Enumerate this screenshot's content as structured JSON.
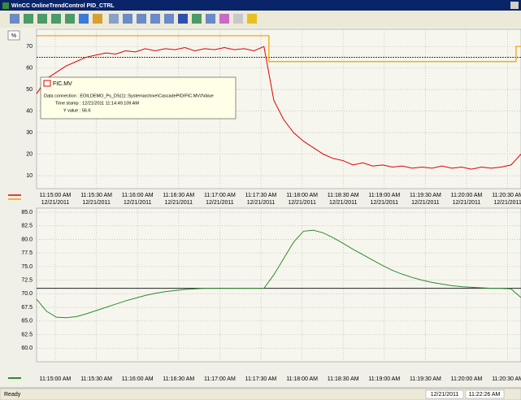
{
  "window": {
    "title": "WinCC OnlineTrendControl PID_CTRL",
    "status": "Ready",
    "status_date": "12/21/2011",
    "status_time": "11:22:26 AM"
  },
  "time_axis": {
    "ticks": [
      "11:15:00 AM",
      "11:15:30 AM",
      "11:16:00 AM",
      "11:16:30 AM",
      "11:17:00 AM",
      "11:17:30 AM",
      "11:18:00 AM",
      "11:18:30 AM",
      "11:19:00 AM",
      "11:19:30 AM",
      "11:20:00 AM",
      "11:20:30 AM"
    ],
    "date": "12/21/2011"
  },
  "upper": {
    "unit_button": "%",
    "ylim": [
      4,
      78
    ],
    "yticks": [
      10,
      20,
      30,
      40,
      50,
      60,
      70
    ],
    "reference": 65,
    "series": [
      {
        "name": "FIC.MV",
        "color": "#e00000",
        "values": [
          48,
          55,
          58,
          61,
          63,
          65,
          66,
          67,
          66.5,
          68,
          67.5,
          69,
          68,
          69,
          68.5,
          69.5,
          68,
          69,
          68.5,
          69.5,
          68.5,
          69,
          68,
          70,
          45,
          36,
          30,
          26,
          23,
          20,
          18,
          17,
          15,
          16,
          14.5,
          15,
          14,
          14.5,
          13.5,
          14,
          13.5,
          14.5,
          13.5,
          14,
          13,
          14,
          13.5,
          14,
          15,
          20
        ]
      },
      {
        "color": "#f0a000",
        "values": [
          75,
          75,
          75,
          75,
          75,
          75,
          75,
          75,
          75,
          75,
          75,
          75,
          75,
          75,
          75,
          75,
          75,
          75,
          75,
          75,
          75,
          75,
          75,
          75,
          63,
          63,
          63,
          63,
          63,
          63,
          63,
          63,
          63,
          63,
          63,
          63,
          63,
          63,
          63,
          63,
          63,
          63,
          63,
          63,
          63,
          63,
          63,
          63,
          63,
          70
        ]
      }
    ],
    "tooltip": {
      "name": "FIC.MV",
      "lines": [
        "Data connection : EOILDEMO_Ps_DS(1)::Systemarchive\\CascadePID/FIC.MV#Value",
        "Time stamp : 12/21/2011 11:14:49.109 AM",
        "Y value : 56.6"
      ]
    }
  },
  "lower": {
    "ylim": [
      57.5,
      85.75
    ],
    "reference": 71,
    "yticks": [
      {
        "value": 60,
        "label": "60.0"
      },
      {
        "value": 62.5,
        "label": "62.5"
      },
      {
        "value": 65,
        "label": "65.0"
      },
      {
        "value": 67.5,
        "label": "67.5"
      },
      {
        "value": 70,
        "label": "70.0"
      },
      {
        "value": 72.5,
        "label": "72.5"
      },
      {
        "value": 75,
        "label": "75.0"
      },
      {
        "value": 77.5,
        "label": "77.5"
      },
      {
        "value": 80,
        "label": "80.0"
      },
      {
        "value": 82.5,
        "label": "82.5"
      },
      {
        "value": 85,
        "label": "85.0"
      }
    ],
    "series": [
      {
        "color": "#2e8b2e",
        "values": [
          69,
          66.8,
          65.7,
          65.6,
          65.8,
          66.3,
          66.9,
          67.5,
          68.1,
          68.7,
          69.2,
          69.7,
          70.1,
          70.4,
          70.6,
          70.8,
          70.9,
          71,
          71,
          71,
          71,
          71,
          71,
          71,
          73.5,
          76.5,
          79.5,
          81.5,
          81.7,
          81.2,
          80.3,
          79.3,
          78.2,
          77.2,
          76.2,
          75.2,
          74.3,
          73.6,
          73,
          72.5,
          72.1,
          71.8,
          71.5,
          71.3,
          71.2,
          71.1,
          71,
          71,
          70.9,
          69.3
        ]
      }
    ]
  }
}
